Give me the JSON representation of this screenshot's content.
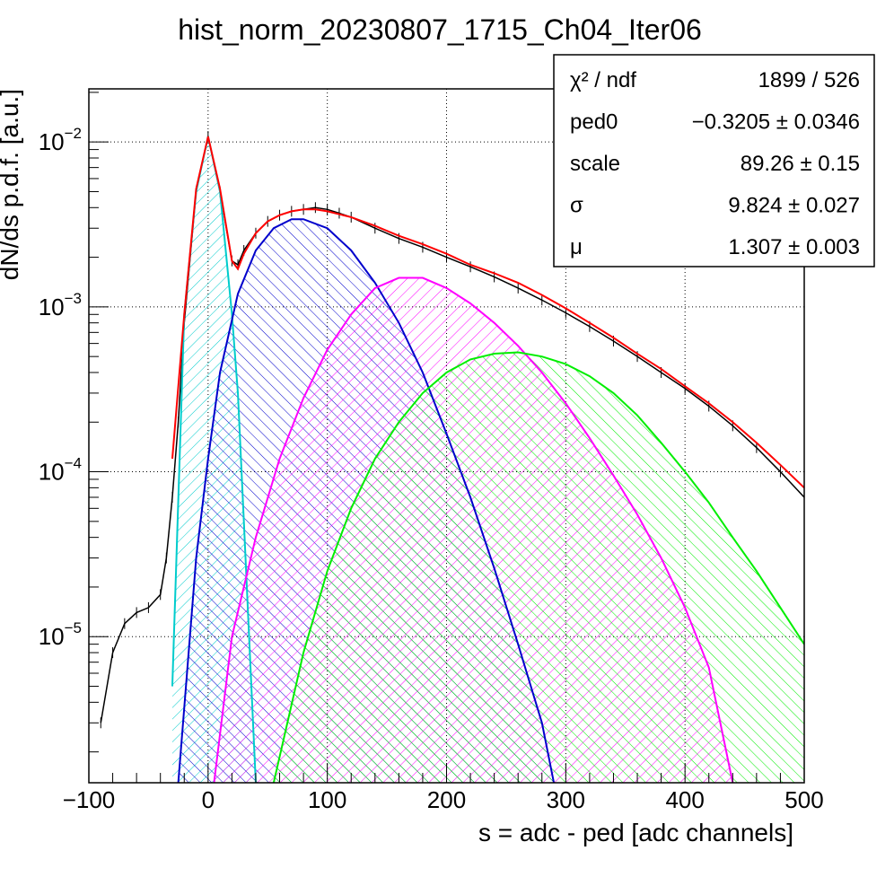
{
  "chart_data": {
    "type": "line",
    "title": "hist_norm_20230807_1715_Ch04_Iter06",
    "xlabel": "s = adc - ped [adc channels]",
    "ylabel": "dN/ds p.d.f. [a.u.]",
    "xlim": [
      -100,
      500
    ],
    "ylim": [
      1.3e-06,
      0.021
    ],
    "yscale": "log",
    "grid": true,
    "x_ticks": [
      -100,
      0,
      100,
      200,
      300,
      400,
      500
    ],
    "x_tick_labels": [
      "−100",
      "0",
      "100",
      "200",
      "300",
      "400",
      "500"
    ],
    "y_ticks": [
      {
        "value": 0.01,
        "base": "10",
        "exp": "−2"
      },
      {
        "value": 0.001,
        "base": "10",
        "exp": "−3"
      },
      {
        "value": 0.0001,
        "base": "10",
        "exp": "−4"
      },
      {
        "value": 1e-05,
        "base": "10",
        "exp": "−5"
      }
    ],
    "stats_box": {
      "placement": "top-right",
      "rows": [
        {
          "label": "χ² / ndf",
          "value": "1899 / 526"
        },
        {
          "label": "ped0",
          "value": "−0.3205 ± 0.0346"
        },
        {
          "label": "scale",
          "value": "89.26 ± 0.15"
        },
        {
          "label": "σ",
          "value": "9.824 ± 0.027"
        },
        {
          "label": "μ",
          "value": "1.307 ± 0.003"
        }
      ]
    },
    "series": [
      {
        "color": "#000000",
        "style": "histogram",
        "x": [
          -90,
          -80,
          -70,
          -60,
          -50,
          -40,
          -35,
          -30,
          -25,
          -20,
          -10,
          0,
          10,
          20,
          25,
          30,
          40,
          50,
          60,
          70,
          80,
          90,
          100,
          110,
          120,
          140,
          160,
          180,
          200,
          220,
          240,
          260,
          280,
          300,
          320,
          340,
          360,
          380,
          400,
          420,
          440,
          460,
          480,
          500
        ],
        "y": [
          3e-06,
          8e-06,
          1.2e-05,
          1.4e-05,
          1.5e-05,
          1.8e-05,
          3e-05,
          7e-05,
          0.0002,
          0.0008,
          0.005,
          0.0108,
          0.005,
          0.0019,
          0.0018,
          0.0022,
          0.0028,
          0.0033,
          0.0036,
          0.0038,
          0.0039,
          0.004,
          0.0039,
          0.0037,
          0.0035,
          0.003,
          0.0026,
          0.0023,
          0.002,
          0.00175,
          0.00152,
          0.0013,
          0.0011,
          0.00092,
          0.00076,
          0.00062,
          0.0005,
          0.0004,
          0.00032,
          0.00025,
          0.00019,
          0.00014,
          0.0001,
          7e-05
        ]
      },
      {
        "color": "#ff0000",
        "style": "fit",
        "x": [
          -30,
          -20,
          -10,
          0,
          10,
          20,
          25,
          30,
          40,
          50,
          60,
          70,
          80,
          90,
          100,
          120,
          140,
          160,
          180,
          200,
          220,
          240,
          260,
          280,
          300,
          320,
          340,
          360,
          380,
          400,
          420,
          440,
          460,
          480,
          500
        ],
        "y": [
          0.00012,
          0.0009,
          0.0052,
          0.0108,
          0.0052,
          0.0019,
          0.0017,
          0.0021,
          0.0028,
          0.0033,
          0.0036,
          0.0038,
          0.0039,
          0.0039,
          0.0038,
          0.0035,
          0.0031,
          0.0027,
          0.0024,
          0.0021,
          0.0018,
          0.0016,
          0.0014,
          0.00118,
          0.00098,
          0.0008,
          0.00065,
          0.00052,
          0.00042,
          0.00033,
          0.00026,
          0.0002,
          0.00015,
          0.00011,
          8e-05
        ]
      },
      {
        "color": "#00cccc",
        "style": "component",
        "x": [
          -30,
          -20,
          -10,
          0,
          10,
          20,
          25,
          30,
          35,
          40
        ],
        "y": [
          5e-06,
          0.0009,
          0.005,
          0.0108,
          0.005,
          0.0009,
          0.0003,
          5e-05,
          8e-06,
          1.3e-06
        ]
      },
      {
        "color": "#0000cc",
        "style": "component",
        "x": [
          -25,
          -10,
          0,
          10,
          25,
          40,
          55,
          70,
          80,
          100,
          120,
          140,
          160,
          180,
          200,
          220,
          240,
          260,
          280,
          290
        ],
        "y": [
          1.3e-06,
          3e-05,
          0.00012,
          0.0004,
          0.0012,
          0.0022,
          0.003,
          0.0034,
          0.0034,
          0.003,
          0.0022,
          0.0014,
          0.0008,
          0.0004,
          0.00017,
          7e-05,
          2.6e-05,
          9e-06,
          3e-06,
          1.3e-06
        ]
      },
      {
        "color": "#ff00ff",
        "style": "component",
        "x": [
          5,
          20,
          40,
          60,
          80,
          100,
          120,
          140,
          160,
          180,
          200,
          220,
          240,
          260,
          280,
          300,
          320,
          340,
          360,
          380,
          400,
          420,
          440
        ],
        "y": [
          1.3e-06,
          1e-05,
          4e-05,
          0.00012,
          0.00028,
          0.00055,
          0.0009,
          0.0013,
          0.0015,
          0.0015,
          0.0013,
          0.00105,
          0.0008,
          0.00058,
          0.0004,
          0.00026,
          0.00016,
          9.5e-05,
          5.5e-05,
          3e-05,
          1.5e-05,
          6.5e-06,
          1.3e-06
        ]
      },
      {
        "color": "#00ee00",
        "style": "component",
        "x": [
          55,
          80,
          100,
          120,
          140,
          160,
          180,
          200,
          220,
          240,
          260,
          280,
          300,
          320,
          340,
          360,
          380,
          400,
          420,
          440,
          460,
          480,
          500
        ],
        "y": [
          1.3e-06,
          8e-06,
          2.5e-05,
          6e-05,
          0.00012,
          0.0002,
          0.0003,
          0.0004,
          0.00048,
          0.00052,
          0.00053,
          0.0005,
          0.00045,
          0.00038,
          0.0003,
          0.00022,
          0.00015,
          0.0001,
          6.5e-05,
          4e-05,
          2.5e-05,
          1.5e-05,
          9e-06
        ]
      }
    ]
  }
}
